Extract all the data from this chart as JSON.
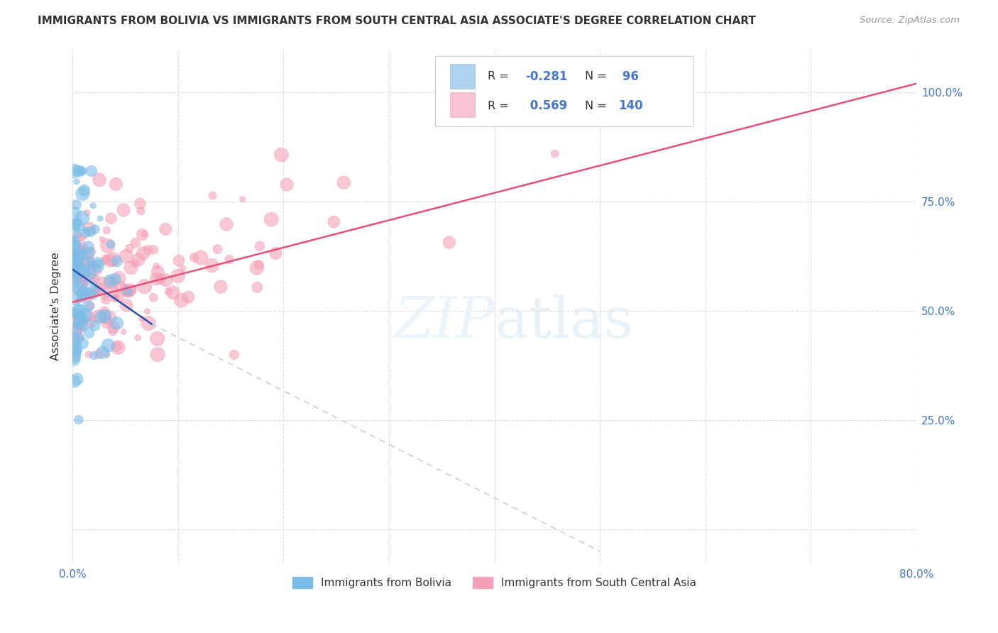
{
  "title": "IMMIGRANTS FROM BOLIVIA VS IMMIGRANTS FROM SOUTH CENTRAL ASIA ASSOCIATE'S DEGREE CORRELATION CHART",
  "source": "Source: ZipAtlas.com",
  "ylabel": "Associate's Degree",
  "bolivia_color": "#7bbde8",
  "south_asia_color": "#f5a0b8",
  "bolivia_fill_color": "#aed4f0",
  "south_asia_fill_color": "#f9c4d4",
  "bolivia_trend_color": "#2255aa",
  "south_asia_trend_color": "#e8507a",
  "dashed_color": "#c8d0dc",
  "watermark_color": "#ddeeff",
  "bg_color": "#ffffff",
  "grid_color": "#dddddd",
  "tick_color": "#4477cc",
  "text_color": "#333333",
  "source_color": "#999999",
  "xlim": [
    0.0,
    0.8
  ],
  "ylim": [
    -0.08,
    1.1
  ],
  "x_ticks": [
    0.0,
    0.1,
    0.2,
    0.3,
    0.4,
    0.5,
    0.6,
    0.7,
    0.8
  ],
  "y_ticks": [
    0.0,
    0.25,
    0.5,
    0.75,
    1.0
  ],
  "y_tick_labels": [
    "",
    "25.0%",
    "50.0%",
    "75.0%",
    "100.0%"
  ],
  "legend_text_color": "#333333",
  "legend_value_color": "#4477cc",
  "bolivia_R": "-0.281",
  "bolivia_N": "96",
  "south_asia_R": "0.569",
  "south_asia_N": "140"
}
